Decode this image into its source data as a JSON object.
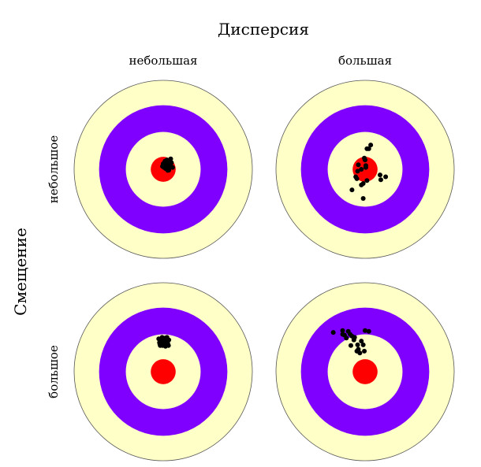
{
  "labels": {
    "column_axis_title": "Дисперсия",
    "column_low": "небольшая",
    "column_high": "большая",
    "row_axis_title": "Смещение",
    "row_low": "небольшое",
    "row_high": "большое"
  },
  "colors": {
    "outer_ring": "#FFFFC8",
    "middle_ring": "#7F00FF",
    "inner_ring": "#FFFFC8",
    "bullseye": "#FF0000",
    "dots": "#000000",
    "ring_outline": "#555555"
  },
  "targets": [
    {
      "id": "low-variance-low-bias",
      "variance": "небольшая",
      "bias": "небольшое",
      "shots": [
        [
          0.1,
          0.0
        ],
        [
          0.18,
          0.05
        ],
        [
          0.05,
          0.12
        ],
        [
          0.12,
          0.15
        ],
        [
          0.02,
          0.05
        ],
        [
          0.08,
          0.18
        ],
        [
          0.2,
          0.1
        ],
        [
          -0.02,
          0.08
        ],
        [
          0.15,
          -0.02
        ],
        [
          0.05,
          0.22
        ],
        [
          0.22,
          0.18
        ],
        [
          0.1,
          0.25
        ],
        [
          0.0,
          0.15
        ],
        [
          0.25,
          0.05
        ],
        [
          0.14,
          0.08
        ],
        [
          0.06,
          0.02
        ],
        [
          0.18,
          0.22
        ],
        [
          0.03,
          0.18
        ],
        [
          0.12,
          -0.03
        ],
        [
          0.2,
          0.28
        ]
      ]
    },
    {
      "id": "high-variance-low-bias",
      "variance": "большая",
      "bias": "небольшое",
      "shots": [
        [
          -0.2,
          -0.05
        ],
        [
          -0.1,
          0.0
        ],
        [
          0.02,
          0.05
        ],
        [
          -0.18,
          0.12
        ],
        [
          0.1,
          0.55
        ],
        [
          0.15,
          0.65
        ],
        [
          0.05,
          0.55
        ],
        [
          0.0,
          0.25
        ],
        [
          -0.22,
          -0.25
        ],
        [
          0.4,
          -0.15
        ],
        [
          0.42,
          -0.28
        ],
        [
          0.55,
          -0.2
        ],
        [
          -0.35,
          -0.55
        ],
        [
          -0.05,
          -0.78
        ],
        [
          -0.05,
          -0.38
        ],
        [
          0.05,
          -0.3
        ],
        [
          -0.1,
          -0.42
        ],
        [
          -0.25,
          -0.2
        ],
        [
          0.02,
          0.1
        ],
        [
          -0.02,
          0.3
        ]
      ]
    },
    {
      "id": "low-variance-high-bias",
      "variance": "небольшая",
      "bias": "большое",
      "shots": [
        [
          -0.05,
          0.85
        ],
        [
          0.05,
          0.9
        ],
        [
          0.1,
          0.82
        ],
        [
          0.0,
          0.75
        ],
        [
          -0.1,
          0.78
        ],
        [
          0.08,
          0.72
        ],
        [
          -0.08,
          0.7
        ],
        [
          0.12,
          0.76
        ],
        [
          0.02,
          0.82
        ],
        [
          -0.03,
          0.92
        ],
        [
          0.15,
          0.85
        ],
        [
          -0.12,
          0.88
        ],
        [
          0.06,
          0.68
        ],
        [
          -0.02,
          0.7
        ],
        [
          0.1,
          0.92
        ],
        [
          -0.06,
          0.8
        ],
        [
          0.14,
          0.7
        ],
        [
          0.0,
          0.88
        ],
        [
          -0.09,
          0.74
        ],
        [
          0.04,
          0.78
        ]
      ]
    },
    {
      "id": "high-variance-high-bias",
      "variance": "большая",
      "bias": "большое",
      "shots": [
        [
          -0.85,
          1.05
        ],
        [
          -0.6,
          1.1
        ],
        [
          -0.45,
          1.08
        ],
        [
          -0.4,
          1.0
        ],
        [
          -0.55,
          0.98
        ],
        [
          -0.5,
          0.9
        ],
        [
          -0.35,
          0.95
        ],
        [
          -0.3,
          0.85
        ],
        [
          -0.1,
          0.82
        ],
        [
          0.0,
          1.1
        ],
        [
          0.1,
          1.08
        ],
        [
          -0.2,
          0.72
        ],
        [
          -0.38,
          0.7
        ],
        [
          -0.18,
          0.6
        ],
        [
          -0.05,
          0.72
        ],
        [
          -0.02,
          0.55
        ],
        [
          -0.28,
          0.92
        ],
        [
          -0.6,
          1.0
        ],
        [
          -0.22,
          0.55
        ],
        [
          -0.14,
          0.5
        ]
      ]
    }
  ]
}
